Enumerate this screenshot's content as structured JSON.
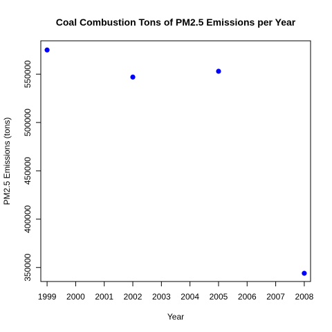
{
  "chart_data": {
    "type": "scatter",
    "title": "Coal Combustion Tons of PM2.5 Emissions per Year",
    "xlabel": "Year",
    "ylabel": "PM2.5 Emissions (tons)",
    "x_ticks": [
      "1999",
      "2000",
      "2001",
      "2002",
      "2003",
      "2004",
      "2005",
      "2006",
      "2007",
      "2008"
    ],
    "y_ticks": [
      "350000",
      "400000",
      "450000",
      "500000",
      "550000"
    ],
    "xlim": [
      1998.78,
      2008.22
    ],
    "ylim": [
      335500,
      584500
    ],
    "x": [
      1999,
      2002,
      2005,
      2008
    ],
    "y": [
      575000,
      547000,
      553000,
      344000
    ],
    "point_color": "#0000ff",
    "grid": false,
    "legend": "none"
  }
}
